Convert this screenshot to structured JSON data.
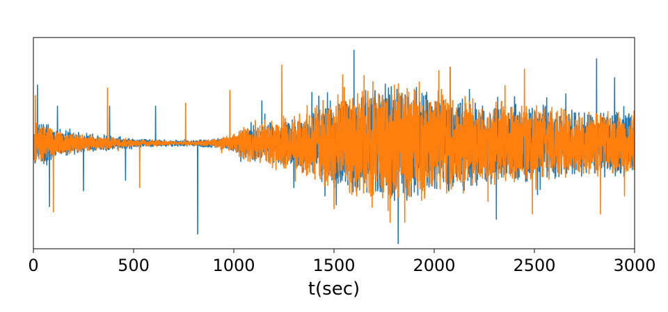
{
  "chart_data": {
    "type": "line",
    "title": "",
    "xlabel": "t(sec)",
    "ylabel": "",
    "xlim": [
      0,
      3000
    ],
    "ylim": [
      -1.0,
      1.0
    ],
    "y_ticks_shown": false,
    "grid": false,
    "legend": "none",
    "x_ticks": [
      0,
      500,
      1000,
      1500,
      2000,
      2500,
      3000
    ],
    "x_tick_labels": [
      "0",
      "500",
      "1000",
      "1500",
      "2000",
      "2500",
      "3000"
    ],
    "series": [
      {
        "color": "#1f77b4",
        "envelope_t": [
          0,
          50,
          100,
          200,
          300,
          400,
          500,
          600,
          700,
          800,
          900,
          1000,
          1050,
          1100,
          1200,
          1300,
          1400,
          1500,
          1600,
          1700,
          1800,
          1900,
          2000,
          2100,
          2200,
          2300,
          2400,
          2500,
          2600,
          2700,
          2800,
          2900,
          3000
        ],
        "envelope_amp": [
          0.22,
          0.22,
          0.16,
          0.12,
          0.09,
          0.07,
          0.05,
          0.04,
          0.03,
          0.03,
          0.05,
          0.08,
          0.15,
          0.18,
          0.22,
          0.25,
          0.35,
          0.45,
          0.5,
          0.55,
          0.6,
          0.58,
          0.52,
          0.48,
          0.45,
          0.42,
          0.4,
          0.38,
          0.36,
          0.35,
          0.34,
          0.33,
          0.32
        ],
        "spikes": [
          [
            20,
            0.55
          ],
          [
            80,
            -0.6
          ],
          [
            120,
            0.35
          ],
          [
            250,
            -0.45
          ],
          [
            380,
            0.35
          ],
          [
            460,
            -0.35
          ],
          [
            610,
            0.35
          ],
          [
            820,
            -0.86
          ],
          [
            1140,
            0.4
          ],
          [
            1300,
            -0.42
          ],
          [
            1390,
            0.48
          ],
          [
            1600,
            0.88
          ],
          [
            1820,
            -0.95
          ],
          [
            2080,
            0.72
          ],
          [
            2310,
            -0.72
          ],
          [
            2810,
            0.8
          ],
          [
            2900,
            0.62
          ]
        ]
      },
      {
        "color": "#ff7f0e",
        "envelope_t": [
          0,
          50,
          100,
          200,
          300,
          400,
          500,
          600,
          700,
          800,
          900,
          1000,
          1050,
          1100,
          1200,
          1300,
          1400,
          1500,
          1600,
          1700,
          1800,
          1900,
          2000,
          2100,
          2200,
          2300,
          2400,
          2500,
          2600,
          2700,
          2800,
          2900,
          3000
        ],
        "envelope_amp": [
          0.2,
          0.2,
          0.15,
          0.1,
          0.08,
          0.06,
          0.04,
          0.03,
          0.02,
          0.02,
          0.04,
          0.1,
          0.18,
          0.22,
          0.25,
          0.3,
          0.4,
          0.5,
          0.55,
          0.6,
          0.62,
          0.6,
          0.55,
          0.5,
          0.46,
          0.42,
          0.4,
          0.38,
          0.36,
          0.35,
          0.34,
          0.33,
          0.32
        ],
        "spikes": [
          [
            10,
            0.45
          ],
          [
            100,
            -0.65
          ],
          [
            370,
            0.52
          ],
          [
            530,
            -0.42
          ],
          [
            760,
            0.38
          ],
          [
            980,
            0.5
          ],
          [
            1240,
            0.74
          ],
          [
            1500,
            -0.62
          ],
          [
            1650,
            0.64
          ],
          [
            1780,
            -0.75
          ],
          [
            2080,
            0.72
          ],
          [
            2450,
            0.7
          ],
          [
            2490,
            -0.67
          ],
          [
            2830,
            -0.67
          ],
          [
            2950,
            -0.5
          ]
        ]
      }
    ]
  }
}
